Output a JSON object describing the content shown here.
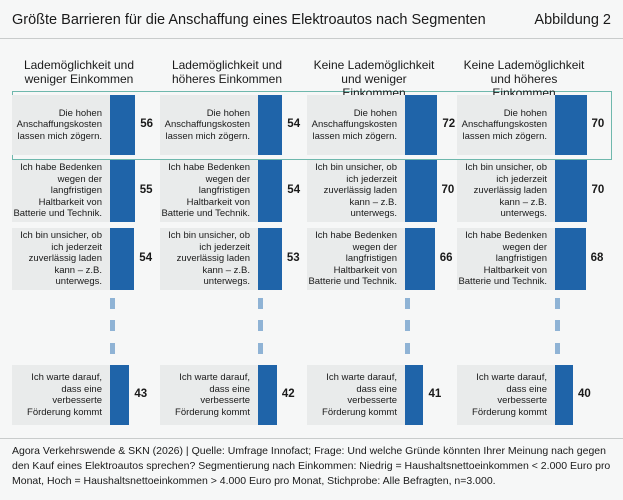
{
  "header": {
    "title": "Größte Barrieren für die Anschaffung eines Elektroautos nach Segmenten",
    "figure": "Abbildung 2"
  },
  "chart_data": [
    {
      "type": "bar",
      "title": "Lademöglichkeit und weniger Einkommen",
      "color": "#1f64a9",
      "categories": [
        "Die hohen Anschaffungskosten lassen mich zögern.",
        "Ich habe Bedenken wegen der langfristigen Haltbarkeit von Batterie und Technik.",
        "Ich bin unsicher, ob ich jederzeit zuverlässig laden kann – z.B. unterwegs.",
        "Ich warte darauf, dass eine verbesserte Förderung kommt"
      ],
      "values": [
        56,
        55,
        54,
        43
      ]
    },
    {
      "type": "bar",
      "title": "Lademöglichkeit und höheres Einkommen",
      "color": "#1f64a9",
      "categories": [
        "Die hohen Anschaffungskosten lassen mich zögern.",
        "Ich habe Bedenken wegen der langfristigen Haltbarkeit von Batterie und Technik.",
        "Ich bin unsicher, ob ich jederzeit zuverlässig laden kann – z.B. unterwegs.",
        "Ich warte darauf, dass eine verbesserte Förderung kommt"
      ],
      "values": [
        54,
        54,
        53,
        42
      ]
    },
    {
      "type": "bar",
      "title": "Keine Lademöglichkeit und weniger Einkommen",
      "color": "#1f64a9",
      "categories": [
        "Die hohen Anschaffungskosten lassen mich zögern.",
        "Ich bin unsicher, ob ich jederzeit zuverlässig laden kann – z.B. unterwegs.",
        "Ich habe Bedenken wegen der langfristigen Haltbarkeit von Batterie und Technik.",
        "Ich warte darauf, dass eine verbesserte Förderung kommt"
      ],
      "values": [
        72,
        70,
        66,
        41
      ]
    },
    {
      "type": "bar",
      "title": "Keine Lademöglichkeit und höheres Einkommen",
      "color": "#1f64a9",
      "categories": [
        "Die hohen Anschaffungskosten lassen mich zögern.",
        "Ich bin unsicher, ob ich jederzeit zuverlässig laden kann – z.B. unterwegs.",
        "Ich habe Bedenken wegen der langfristigen Haltbarkeit von Batterie und Technik.",
        "Ich warte darauf, dass eine verbesserte Förderung kommt"
      ],
      "values": [
        70,
        70,
        68,
        40
      ]
    }
  ],
  "source": "Agora Verkehrswende & SKN (2026) | Quelle: Umfrage Innofact; Frage: Und welche Gründe könnten Ihrer Meinung nach gegen den Kauf eines Elektroautos sprechen? Segmentierung nach Einkommen: Niedrig = Haushaltsnettoeinkommen < 2.000 Euro pro Monat, Hoch = Haushaltsnettoeinkommen > 4.000 Euro pro Monat, Stichprobe: Alle Befragten, n=3.000."
}
